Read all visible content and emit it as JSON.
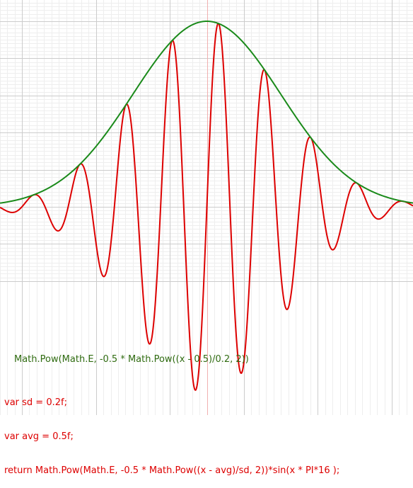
{
  "chart_data": {
    "type": "line",
    "grid": true,
    "x_range": [
      -0.02,
      1.07
    ],
    "y_range": [
      -1.0,
      1.05
    ],
    "series": [
      {
        "color": "#dd0000",
        "formula": "exp(-0.5*((x-0.5)/0.2)^2) * sin(x*PI*16)"
      },
      {
        "color": "#1a8a1a",
        "formula": "exp(-0.5*((x-0.5)/0.2)^2)"
      }
    ],
    "annotations": {
      "green_formula": "Math.Pow(Math.E, -0.5 * Math.Pow((x - 0.5)/0.2, 2))",
      "red_code": [
        "var sd = 0.2f;",
        "var avg = 0.5f;",
        "return Math.Pow(Math.E, -0.5 * Math.Pow((x - avg)/sd, 2))*sin(x * PI*16 );"
      ]
    }
  },
  "colors": {
    "grid_minor": "#eeeeee",
    "grid_major": "#cccccc",
    "axis_red": "#f0b0b0",
    "red_curve": "#dd0000",
    "green_curve": "#1a8a1a"
  }
}
